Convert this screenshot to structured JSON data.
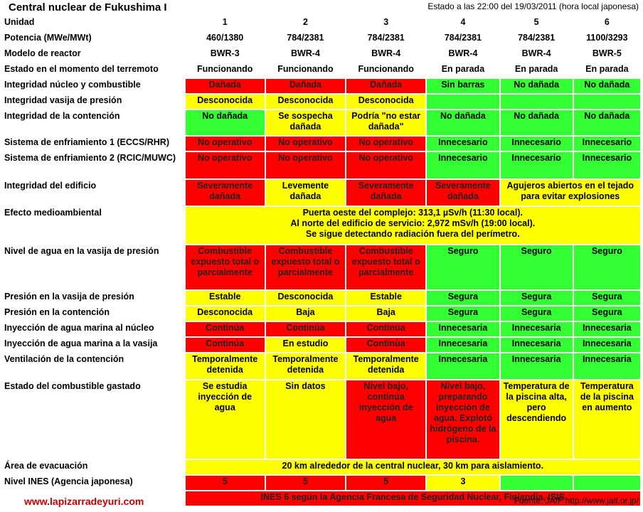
{
  "title": "Central nuclear de Fukushima I",
  "status_line": "Estado a las 22:00 del 19/03/2011 (hora local japonesa)",
  "colors": {
    "red": "#ff0000",
    "yellow": "#ffff00",
    "green": "#33ff33"
  },
  "table": {
    "header": {
      "label": "Unidad",
      "units": [
        "1",
        "2",
        "3",
        "4",
        "5",
        "6"
      ]
    },
    "rows": [
      {
        "label": "Potencia (MWe/MWt)",
        "cells": [
          {
            "t": "460/1380",
            "c": "W"
          },
          {
            "t": "784/2381",
            "c": "W"
          },
          {
            "t": "784/2381",
            "c": "W"
          },
          {
            "t": "784/2381",
            "c": "W"
          },
          {
            "t": "784/2381",
            "c": "W"
          },
          {
            "t": "1100/3293",
            "c": "W"
          }
        ]
      },
      {
        "label": "Modelo de reactor",
        "cells": [
          {
            "t": "BWR-3",
            "c": "W"
          },
          {
            "t": "BWR-4",
            "c": "W"
          },
          {
            "t": "BWR-4",
            "c": "W"
          },
          {
            "t": "BWR-4",
            "c": "W"
          },
          {
            "t": "BWR-4",
            "c": "W"
          },
          {
            "t": "BWR-5",
            "c": "W"
          }
        ]
      },
      {
        "label": "Estado en el momento del terremoto",
        "cells": [
          {
            "t": "Funcionando",
            "c": "W"
          },
          {
            "t": "Funcionando",
            "c": "W"
          },
          {
            "t": "Funcionando",
            "c": "W"
          },
          {
            "t": "En parada",
            "c": "W"
          },
          {
            "t": "En parada",
            "c": "W"
          },
          {
            "t": "En parada",
            "c": "W"
          }
        ]
      },
      {
        "label": "Integridad núcleo y combustible",
        "cells": [
          {
            "t": "Dañada",
            "c": "R"
          },
          {
            "t": "Dañada",
            "c": "R"
          },
          {
            "t": "Dañada",
            "c": "R"
          },
          {
            "t": "Sin barras",
            "c": "G"
          },
          {
            "t": "No dañada",
            "c": "G"
          },
          {
            "t": "No dañada",
            "c": "G"
          }
        ]
      },
      {
        "label": "Integridad vasija de presión",
        "cells": [
          {
            "t": "Desconocida",
            "c": "Y"
          },
          {
            "t": "Desconocida",
            "c": "Y"
          },
          {
            "t": "Desconocida",
            "c": "Y"
          },
          {
            "t": "",
            "c": "G"
          },
          {
            "t": "",
            "c": "G"
          },
          {
            "t": "",
            "c": "G"
          }
        ]
      },
      {
        "label": "Integridad de la contención",
        "cells": [
          {
            "t": "No dañada",
            "c": "G"
          },
          {
            "t": "Se sospecha dañada",
            "c": "Y"
          },
          {
            "t": "Podría \"no estar dañada\"",
            "c": "Y"
          },
          {
            "t": "No dañada",
            "c": "G"
          },
          {
            "t": "No dañada",
            "c": "G"
          },
          {
            "t": "No dañada",
            "c": "G"
          }
        ]
      },
      {
        "label": "Sistema de enfriamiento 1 (ECCS/RHR)",
        "cells": [
          {
            "t": "No operativo",
            "c": "R"
          },
          {
            "t": "No operativo",
            "c": "R"
          },
          {
            "t": "No operativo",
            "c": "R"
          },
          {
            "t": "Innecesario",
            "c": "G"
          },
          {
            "t": "Innecesario",
            "c": "G"
          },
          {
            "t": "Innecesario",
            "c": "G"
          }
        ]
      },
      {
        "label": "Sistema de enfriamiento 2 (RCIC/MUWC)",
        "cells": [
          {
            "t": "No operativo",
            "c": "R"
          },
          {
            "t": "No operativo",
            "c": "R"
          },
          {
            "t": "No operativo",
            "c": "R"
          },
          {
            "t": "Innecesario",
            "c": "G"
          },
          {
            "t": "Innecesario",
            "c": "G"
          },
          {
            "t": "Innecesario",
            "c": "G"
          }
        ]
      },
      {
        "label": "Integridad del edificio",
        "cells": [
          {
            "t": "Severamente dañada",
            "c": "R"
          },
          {
            "t": "Levemente dañada",
            "c": "Y"
          },
          {
            "t": "Severamente dañada",
            "c": "R"
          },
          {
            "t": "Severamente dañada",
            "c": "R"
          },
          {
            "t": "Agujeros abiertos en el tejado para evitar explosiones",
            "c": "Y",
            "span": 2
          }
        ]
      },
      {
        "label": "Efecto medioambiental",
        "cells": [
          {
            "t": "Puerta oeste del complejo: 313,1 µSv/h (11:30 local).\nAl norte del edificio de servicio: 2,972 mSv/h (19:00 local).\nSe sigue detectando radiación fuera del perímetro.",
            "c": "Y",
            "span": 6
          }
        ]
      },
      {
        "label": "Nivel de agua en la vasija de presión",
        "cells": [
          {
            "t": "Combustible expuesto total o parcialmente",
            "c": "R"
          },
          {
            "t": "Combustible expuesto total o parcialmente",
            "c": "R"
          },
          {
            "t": "Combustible expuesto total o parcialmente",
            "c": "R"
          },
          {
            "t": "Seguro",
            "c": "G"
          },
          {
            "t": "Seguro",
            "c": "G"
          },
          {
            "t": "Seguro",
            "c": "G"
          }
        ]
      },
      {
        "label": "Presión en la vasija de presión",
        "cells": [
          {
            "t": "Estable",
            "c": "Y"
          },
          {
            "t": "Desconocida",
            "c": "Y"
          },
          {
            "t": "Estable",
            "c": "Y"
          },
          {
            "t": "Segura",
            "c": "G"
          },
          {
            "t": "Segura",
            "c": "G"
          },
          {
            "t": "Segura",
            "c": "G"
          }
        ]
      },
      {
        "label": "Presión en la contención",
        "cells": [
          {
            "t": "Desconocida",
            "c": "Y"
          },
          {
            "t": "Baja",
            "c": "Y"
          },
          {
            "t": "Baja",
            "c": "Y"
          },
          {
            "t": "Segura",
            "c": "G"
          },
          {
            "t": "Segura",
            "c": "G"
          },
          {
            "t": "Segura",
            "c": "G"
          }
        ]
      },
      {
        "label": "Inyección de agua marina al núcleo",
        "cells": [
          {
            "t": "Continúa",
            "c": "R"
          },
          {
            "t": "Continúa",
            "c": "R"
          },
          {
            "t": "Continúa",
            "c": "R"
          },
          {
            "t": "Innecesaria",
            "c": "G"
          },
          {
            "t": "Innecesaria",
            "c": "G"
          },
          {
            "t": "Innecesaria",
            "c": "G"
          }
        ]
      },
      {
        "label": "Inyección de agua marina a la vasija",
        "cells": [
          {
            "t": "Continúa",
            "c": "R"
          },
          {
            "t": "En estudio",
            "c": "Y"
          },
          {
            "t": "Continúa",
            "c": "R"
          },
          {
            "t": "Innecesaria",
            "c": "G"
          },
          {
            "t": "Innecesaria",
            "c": "G"
          },
          {
            "t": "Innecesaria",
            "c": "G"
          }
        ]
      },
      {
        "label": "Ventilación de la contención",
        "cells": [
          {
            "t": "Temporalmente detenida",
            "c": "Y"
          },
          {
            "t": "Temporalmente detenida",
            "c": "Y"
          },
          {
            "t": "Temporalmente detenida",
            "c": "Y"
          },
          {
            "t": "Innecesaria",
            "c": "G"
          },
          {
            "t": "Innecesaria",
            "c": "G"
          },
          {
            "t": "Innecesaria",
            "c": "G"
          }
        ]
      },
      {
        "label": "Estado del combustible gastado",
        "cells": [
          {
            "t": "Se estudia inyección de agua",
            "c": "Y"
          },
          {
            "t": "Sin datos",
            "c": "Y"
          },
          {
            "t": "Nivel bajo, continúa inyección de agua",
            "c": "R"
          },
          {
            "t": "Nivel bajo, preparando inyección de agua. Explotó hidrógeno de la piscina.",
            "c": "R"
          },
          {
            "t": "Temperatura de la piscina alta, pero descendiendo",
            "c": "Y"
          },
          {
            "t": "Temperatura de la piscina en aumento",
            "c": "Y"
          }
        ]
      },
      {
        "label": "Área de evacuación",
        "cells": [
          {
            "t": "20 km alrededor de la central nuclear, 30 km para aislamiento.",
            "c": "Y",
            "span": 6
          }
        ]
      },
      {
        "label": "Nivel INES (Agencia japonesa)",
        "cells": [
          {
            "t": "5",
            "c": "R"
          },
          {
            "t": "5",
            "c": "R"
          },
          {
            "t": "5",
            "c": "R"
          },
          {
            "t": "3",
            "c": "Y"
          },
          {
            "t": "",
            "c": "G"
          },
          {
            "t": "",
            "c": "G"
          }
        ]
      },
      {
        "label": "",
        "cells": [
          {
            "t": "INES 6 según la Agencia Francesa de Seguridad Nuclear, Finlandia, ISIS",
            "c": "R",
            "span": 6
          }
        ]
      }
    ]
  },
  "footer": {
    "site": "www.lapizarradeyuri.com",
    "source": "Fuente: JAIF  http://www.jaif.or.jp/"
  }
}
